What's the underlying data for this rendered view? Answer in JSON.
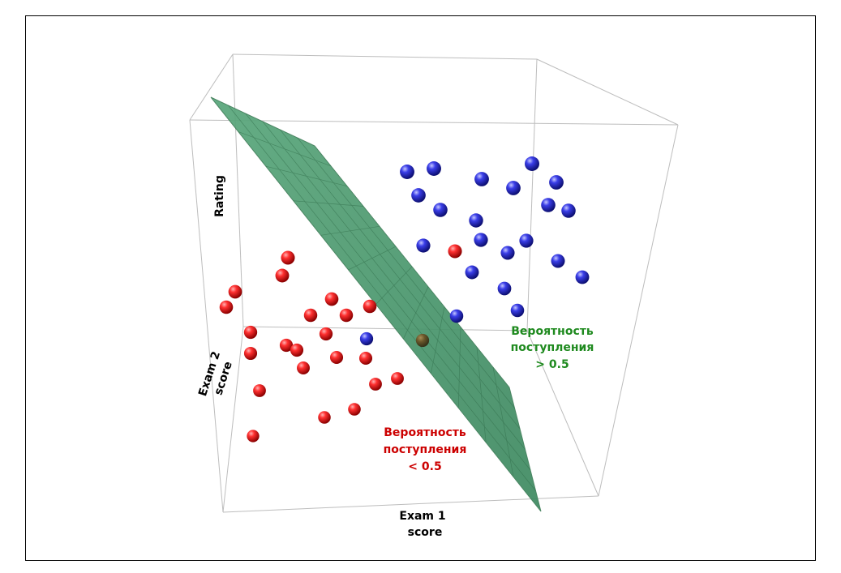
{
  "chart_data": {
    "type": "scatter",
    "dimensions": 3,
    "axes": {
      "x": {
        "label_line1": "Exam 1",
        "label_line2": "score"
      },
      "y": {
        "label_line1": "Exam 2",
        "label_line2": "score"
      },
      "z": {
        "label": "Rating"
      }
    },
    "series": [
      {
        "name": "",
        "color": "#e02020",
        "points": [
          {
            "px": 290,
            "py": 360
          },
          {
            "px": 279,
            "py": 379
          },
          {
            "px": 355,
            "py": 318
          },
          {
            "px": 348,
            "py": 340
          },
          {
            "px": 409,
            "py": 369
          },
          {
            "px": 383,
            "py": 389
          },
          {
            "px": 427,
            "py": 389
          },
          {
            "px": 456,
            "py": 378
          },
          {
            "px": 309,
            "py": 410
          },
          {
            "px": 402,
            "py": 412
          },
          {
            "px": 309,
            "py": 436
          },
          {
            "px": 353,
            "py": 426
          },
          {
            "px": 366,
            "py": 432
          },
          {
            "px": 415,
            "py": 441
          },
          {
            "px": 451,
            "py": 442
          },
          {
            "px": 374,
            "py": 454
          },
          {
            "px": 490,
            "py": 467
          },
          {
            "px": 463,
            "py": 474
          },
          {
            "px": 320,
            "py": 482
          },
          {
            "px": 437,
            "py": 505
          },
          {
            "px": 400,
            "py": 515
          },
          {
            "px": 312,
            "py": 538
          },
          {
            "px": 561,
            "py": 310
          }
        ]
      },
      {
        "name": "",
        "color": "#2b2fd8",
        "points": [
          {
            "px": 502,
            "py": 212
          },
          {
            "px": 535,
            "py": 208
          },
          {
            "px": 594,
            "py": 221
          },
          {
            "px": 656,
            "py": 202
          },
          {
            "px": 686,
            "py": 225
          },
          {
            "px": 633,
            "py": 232
          },
          {
            "px": 516,
            "py": 241
          },
          {
            "px": 543,
            "py": 259
          },
          {
            "px": 676,
            "py": 253
          },
          {
            "px": 701,
            "py": 260
          },
          {
            "px": 587,
            "py": 272
          },
          {
            "px": 593,
            "py": 296
          },
          {
            "px": 649,
            "py": 297
          },
          {
            "px": 522,
            "py": 303
          },
          {
            "px": 626,
            "py": 312
          },
          {
            "px": 688,
            "py": 322
          },
          {
            "px": 582,
            "py": 336
          },
          {
            "px": 718,
            "py": 342
          },
          {
            "px": 622,
            "py": 356
          },
          {
            "px": 638,
            "py": 383
          },
          {
            "px": 563,
            "py": 390
          },
          {
            "px": 452,
            "py": 418
          }
        ]
      },
      {
        "name": "",
        "color": "#6b4a1c",
        "points": [
          {
            "px": 521,
            "py": 420
          }
        ]
      }
    ],
    "decision_surface": {
      "color": "#4f9a72"
    },
    "annotations": [
      {
        "side": "positive",
        "line1": "Вероятность",
        "line2": "поступления",
        "line3": "> 0.5",
        "color": "#1f8a1f"
      },
      {
        "side": "negative",
        "line1": "Вероятность",
        "line2": "поступления",
        "line3": "< 0.5",
        "color": "#cc0000"
      }
    ]
  }
}
